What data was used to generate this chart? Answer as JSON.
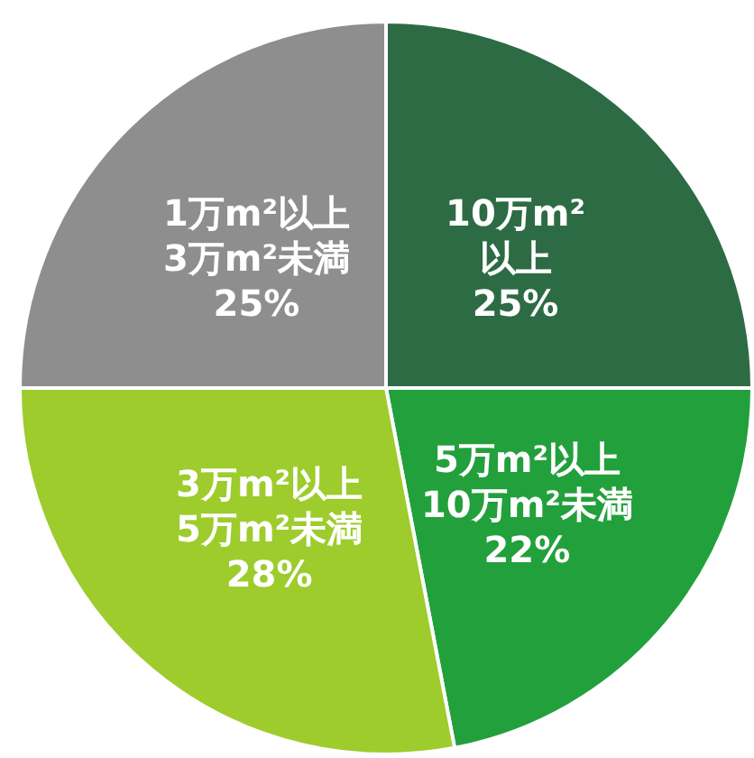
{
  "chart_data": {
    "type": "pie",
    "categories": [
      "10万m²\n以上",
      "5万m²以上\n10万m²未満",
      "3万m²以上\n5万m²未満",
      "1万m²以上\n3万m²未満"
    ],
    "values": [
      25,
      22,
      28,
      25
    ],
    "colors": [
      "#2d6b45",
      "#22a03c",
      "#9dcc2c",
      "#8e8e8e"
    ],
    "value_labels": [
      "25%",
      "22%",
      "28%",
      "25%"
    ],
    "legend": false
  }
}
